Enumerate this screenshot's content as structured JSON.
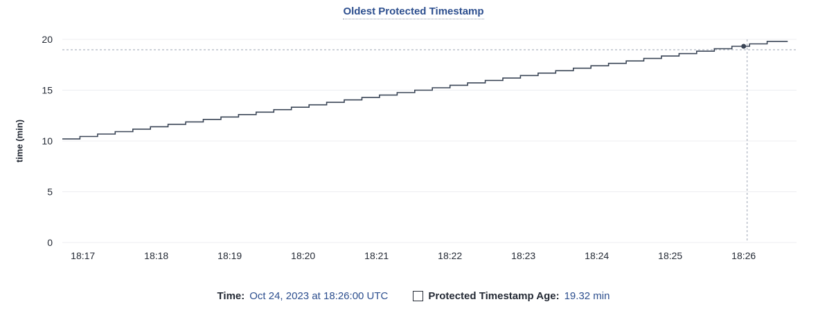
{
  "chart": {
    "title": "Oldest Protected Timestamp",
    "ylabel": "time (min)"
  },
  "footer": {
    "time_label": "Time:",
    "time_value": "Oct 24, 2023 at 18:26:00 UTC",
    "series_label": "Protected Timestamp Age:",
    "series_value": "19.32 min"
  },
  "colors": {
    "line": "#394455",
    "title_text": "#2c4e8e",
    "value_text": "#2c4e8e",
    "label_text": "#242a35",
    "grid": "#ecedf1",
    "crosshair": "#9aa3b2"
  },
  "chart_data": {
    "type": "line",
    "step": true,
    "title": "Oldest Protected Timestamp",
    "xlabel": "",
    "ylabel": "time (min)",
    "ylim": [
      0,
      20
    ],
    "y_ticks": [
      0,
      5,
      10,
      15,
      20
    ],
    "x_ticks": [
      "18:17",
      "18:18",
      "18:19",
      "18:20",
      "18:21",
      "18:22",
      "18:23",
      "18:24",
      "18:25",
      "18:26"
    ],
    "x_ticks_min": [
      17,
      18,
      19,
      20,
      21,
      22,
      23,
      24,
      25,
      26
    ],
    "xlim_min": [
      16.72,
      26.72
    ],
    "x_end_min": 26.6,
    "grid": "horizontal",
    "legend_position": "bottom",
    "series": [
      {
        "name": "Protected Timestamp Age",
        "color": "#394455",
        "points_min_value": [
          [
            16.72,
            10.2
          ],
          [
            16.96,
            10.44
          ],
          [
            17.2,
            10.68
          ],
          [
            17.44,
            10.92
          ],
          [
            17.68,
            11.16
          ],
          [
            17.92,
            11.4
          ],
          [
            18.16,
            11.64
          ],
          [
            18.4,
            11.88
          ],
          [
            18.64,
            12.12
          ],
          [
            18.88,
            12.36
          ],
          [
            19.12,
            12.6
          ],
          [
            19.36,
            12.84
          ],
          [
            19.6,
            13.08
          ],
          [
            19.84,
            13.32
          ],
          [
            20.08,
            13.56
          ],
          [
            20.32,
            13.8
          ],
          [
            20.56,
            14.04
          ],
          [
            20.8,
            14.28
          ],
          [
            21.04,
            14.52
          ],
          [
            21.28,
            14.76
          ],
          [
            21.52,
            15.0
          ],
          [
            21.76,
            15.24
          ],
          [
            22.0,
            15.48
          ],
          [
            22.24,
            15.72
          ],
          [
            22.48,
            15.96
          ],
          [
            22.72,
            16.2
          ],
          [
            22.96,
            16.44
          ],
          [
            23.2,
            16.68
          ],
          [
            23.44,
            16.92
          ],
          [
            23.68,
            17.16
          ],
          [
            23.92,
            17.4
          ],
          [
            24.16,
            17.64
          ],
          [
            24.4,
            17.88
          ],
          [
            24.64,
            18.12
          ],
          [
            24.88,
            18.36
          ],
          [
            25.12,
            18.6
          ],
          [
            25.36,
            18.84
          ],
          [
            25.6,
            19.08
          ],
          [
            25.84,
            19.32
          ],
          [
            26.08,
            19.56
          ],
          [
            26.32,
            19.8
          ]
        ]
      }
    ],
    "hover": {
      "point_min": 26.0,
      "point_time": "18:26:00",
      "point_value": 19.32,
      "time_full": "Oct 24, 2023 at 18:26:00 UTC",
      "value_label": "19.32 min"
    }
  }
}
